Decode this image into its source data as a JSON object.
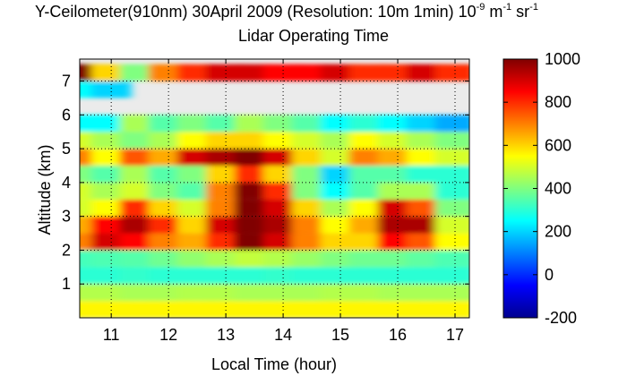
{
  "chart_data": {
    "type": "heatmap",
    "title_parts": [
      {
        "t": "Y-Ceilometer(910nm) 30April 2009 (Resolution: 10m 1min) 10",
        "s": false
      },
      {
        "t": "-9",
        "s": true
      },
      {
        "t": " m",
        "s": false
      },
      {
        "t": "-1",
        "s": true
      },
      {
        "t": " sr",
        "s": false
      },
      {
        "t": "-1",
        "s": true
      }
    ],
    "subtitle": "Lidar Operating Time",
    "xlabel": "Local Time (hour)",
    "ylabel": "Altitude (km)",
    "xlim": [
      10.45,
      17.25
    ],
    "ylim": [
      0,
      7.65
    ],
    "xticks": [
      11,
      12,
      13,
      14,
      15,
      16,
      17
    ],
    "yticks": [
      1,
      2,
      3,
      4,
      5,
      6,
      7
    ],
    "colorbar": {
      "min": -200,
      "max": 1000,
      "ticks": [
        1000,
        800,
        600,
        400,
        200,
        0,
        -200
      ]
    },
    "no_data_color": "#ebebeb",
    "grid": "dotted",
    "x": [
      10.5,
      11.0,
      11.5,
      12.0,
      12.5,
      13.0,
      13.5,
      14.0,
      14.5,
      15.0,
      15.5,
      16.0,
      16.5,
      17.0
    ],
    "y": [
      0.25,
      0.75,
      1.25,
      1.75,
      2.25,
      2.75,
      3.25,
      3.75,
      4.25,
      4.75,
      5.25,
      5.75,
      6.25,
      6.75,
      7.25
    ],
    "z": [
      [
        560,
        560,
        560,
        560,
        560,
        560,
        560,
        560,
        560,
        560,
        560,
        560,
        560,
        560
      ],
      [
        460,
        460,
        450,
        450,
        460,
        460,
        450,
        450,
        450,
        460,
        460,
        450,
        450,
        450
      ],
      [
        300,
        300,
        310,
        300,
        300,
        300,
        300,
        310,
        300,
        300,
        300,
        300,
        300,
        300
      ],
      [
        330,
        340,
        350,
        380,
        420,
        450,
        480,
        460,
        430,
        400,
        380,
        380,
        360,
        340
      ],
      [
        700,
        900,
        850,
        700,
        650,
        800,
        1000,
        900,
        700,
        600,
        600,
        850,
        750,
        550
      ],
      [
        650,
        850,
        950,
        800,
        600,
        900,
        1000,
        950,
        700,
        550,
        650,
        950,
        950,
        500
      ],
      [
        500,
        550,
        800,
        600,
        500,
        700,
        1000,
        900,
        600,
        450,
        550,
        900,
        750,
        400
      ],
      [
        500,
        450,
        500,
        400,
        350,
        700,
        1000,
        800,
        400,
        250,
        350,
        450,
        450,
        300
      ],
      [
        400,
        350,
        450,
        350,
        400,
        600,
        800,
        600,
        400,
        200,
        350,
        350,
        300,
        300
      ],
      [
        700,
        550,
        750,
        650,
        900,
        950,
        1000,
        900,
        600,
        500,
        700,
        650,
        550,
        500
      ],
      [
        500,
        450,
        400,
        450,
        550,
        600,
        600,
        550,
        500,
        450,
        550,
        500,
        450,
        400
      ],
      [
        250,
        250,
        450,
        350,
        400,
        350,
        450,
        400,
        350,
        250,
        300,
        250,
        200,
        150
      ],
      [
        null,
        null,
        null,
        null,
        null,
        null,
        null,
        null,
        null,
        null,
        null,
        null,
        null,
        null
      ],
      [
        250,
        200,
        null,
        null,
        null,
        null,
        null,
        null,
        null,
        null,
        null,
        null,
        null,
        null
      ],
      [
        1000,
        600,
        400,
        700,
        800,
        900,
        900,
        850,
        850,
        900,
        800,
        800,
        900,
        800
      ]
    ]
  }
}
